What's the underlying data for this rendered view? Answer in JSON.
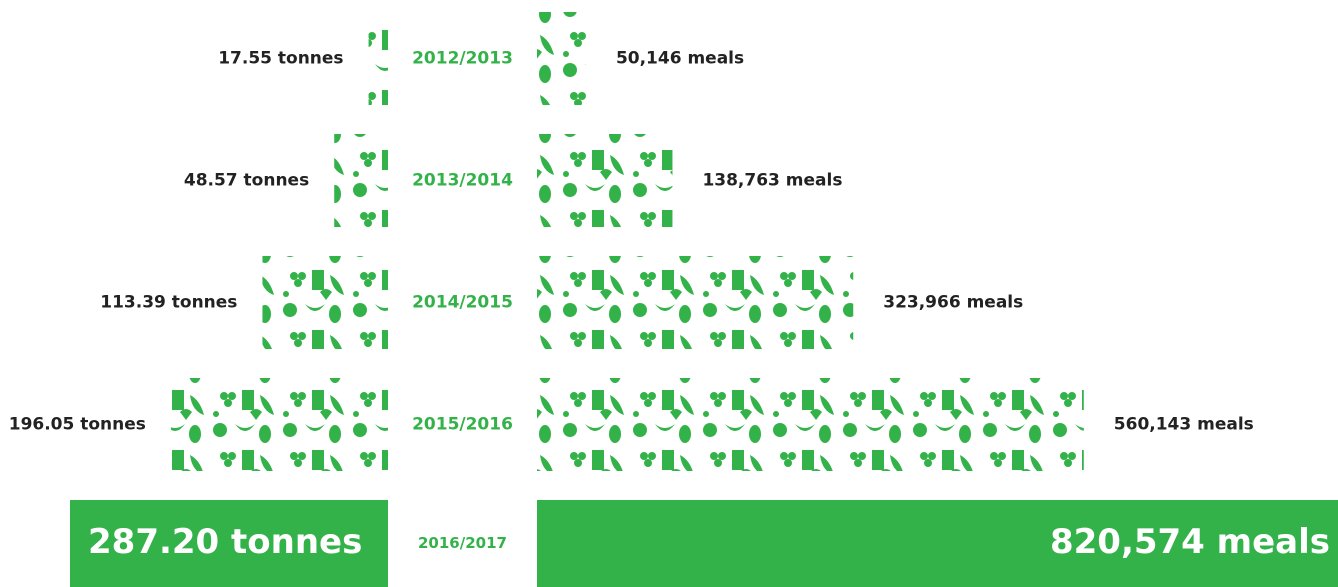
{
  "chart_data": {
    "type": "butterfly",
    "categories": [
      "2012/2013",
      "2013/2014",
      "2014/2015",
      "2015/2016",
      "2016/2017"
    ],
    "color": "#34b24a",
    "series": [
      {
        "values": [
          17.55,
          48.57,
          113.39,
          196.05,
          287.2
        ],
        "value_labels": [
          "17.55 tonnes",
          "48.57 tonnes",
          "113.39 tonnes",
          "196.05 tonnes",
          "287.20 tonnes"
        ]
      },
      {
        "values": [
          50146,
          138763,
          323966,
          560143,
          820574
        ],
        "value_labels": [
          "50,146 meals",
          "138,763 meals",
          "323,966 meals",
          "560,143 meals",
          "820,574 meals"
        ]
      }
    ]
  }
}
